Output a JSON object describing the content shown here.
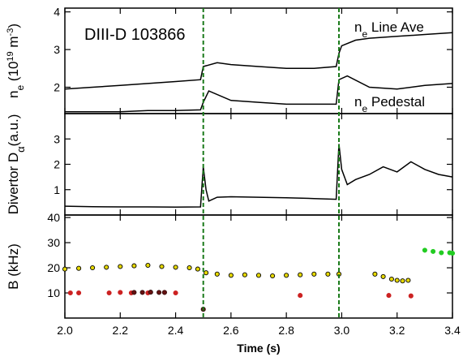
{
  "chart_data": [
    {
      "type": "line",
      "panel": "top",
      "title": "DIII-D 103866",
      "ylabel": "n_e (10^19 m^-3)",
      "ylabel_parts": {
        "base": "n",
        "sub": "e",
        "units_pre": " (10",
        "units_sup": "19",
        "units_mid": " m",
        "units_sup2": "-3",
        "units_post": ")"
      },
      "ylim": [
        1.3,
        4.1
      ],
      "yticks": [
        2,
        3,
        4
      ],
      "xlim": [
        2.0,
        3.4
      ],
      "series": [
        {
          "name": "n_e Line Ave",
          "label_base": "n",
          "label_sub": "e",
          "label_rest": " Line Ave",
          "x": [
            2.0,
            2.1,
            2.2,
            2.3,
            2.4,
            2.49,
            2.5,
            2.55,
            2.6,
            2.7,
            2.8,
            2.9,
            2.98,
            2.99,
            3.0,
            3.05,
            3.1,
            3.2,
            3.3,
            3.4
          ],
          "y": [
            1.95,
            2.0,
            2.05,
            2.1,
            2.15,
            2.2,
            2.55,
            2.65,
            2.6,
            2.55,
            2.5,
            2.5,
            2.55,
            2.9,
            3.1,
            3.25,
            3.3,
            3.35,
            3.4,
            3.45
          ]
        },
        {
          "name": "n_e Pedestal",
          "label_base": "n",
          "label_sub": "e",
          "label_rest": " Pedestal",
          "x": [
            2.0,
            2.1,
            2.2,
            2.3,
            2.4,
            2.49,
            2.5,
            2.52,
            2.6,
            2.7,
            2.8,
            2.9,
            2.98,
            2.99,
            3.02,
            3.1,
            3.2,
            3.3,
            3.4
          ],
          "y": [
            1.35,
            1.35,
            1.35,
            1.38,
            1.38,
            1.4,
            1.6,
            1.9,
            1.65,
            1.6,
            1.55,
            1.55,
            1.55,
            2.2,
            2.3,
            2.0,
            1.95,
            2.05,
            2.1
          ]
        }
      ]
    },
    {
      "type": "line",
      "panel": "middle",
      "ylabel": "Divertor Dα (a.u.)",
      "ylabel_parts": {
        "base": "Divertor D",
        "sub": "α",
        "post": "(a.u.)"
      },
      "ylim": [
        0,
        4
      ],
      "yticks": [
        1,
        2,
        3
      ],
      "xlim": [
        2.0,
        3.4
      ],
      "series": [
        {
          "x": [
            2.0,
            2.1,
            2.2,
            2.3,
            2.4,
            2.49,
            2.5,
            2.51,
            2.52,
            2.55,
            2.6,
            2.7,
            2.8,
            2.9,
            2.98,
            2.99,
            3.0,
            3.02,
            3.05,
            3.1,
            3.15,
            3.2,
            3.25,
            3.3,
            3.35,
            3.4
          ],
          "y": [
            0.35,
            0.33,
            0.32,
            0.32,
            0.31,
            0.32,
            1.9,
            1.0,
            0.55,
            0.7,
            0.72,
            0.7,
            0.68,
            0.65,
            0.62,
            2.8,
            1.8,
            1.2,
            1.4,
            1.6,
            1.9,
            1.7,
            2.1,
            1.8,
            1.6,
            1.5
          ]
        }
      ]
    },
    {
      "type": "scatter",
      "panel": "bottom",
      "ylabel": "B̃ (kHz)",
      "ylabel_parts": {
        "base": "B",
        "accent": "~",
        "post": " (kHz)"
      },
      "ylim": [
        0,
        41
      ],
      "yticks": [
        10,
        20,
        30,
        40
      ],
      "xlim": [
        2.0,
        3.4
      ],
      "xticks": [
        2.0,
        2.2,
        2.4,
        2.6,
        2.8,
        3.0,
        3.2,
        3.4
      ],
      "xtick_labels": [
        "2.0",
        "2.2",
        "2.4",
        "2.6",
        "2.8",
        "3.0",
        "3.2",
        "3.4"
      ],
      "xlabel": "Time (s)",
      "series": [
        {
          "color": "#e6d800",
          "edge": "#000000",
          "x": [
            2.0,
            2.05,
            2.1,
            2.15,
            2.2,
            2.25,
            2.3,
            2.35,
            2.4,
            2.45,
            2.48,
            2.51,
            2.55,
            2.6,
            2.65,
            2.7,
            2.75,
            2.8,
            2.85,
            2.9,
            2.95,
            2.99
          ],
          "y": [
            19.5,
            19.8,
            20.0,
            20.2,
            20.5,
            20.8,
            21.0,
            20.5,
            20.2,
            20.0,
            19.5,
            18.0,
            17.5,
            17.0,
            17.2,
            17.0,
            16.8,
            17.0,
            17.2,
            17.5,
            17.5,
            17.5
          ]
        },
        {
          "color": "#e6d800",
          "edge": "#000000",
          "x": [
            3.12,
            3.15,
            3.18,
            3.2,
            3.22,
            3.24
          ],
          "y": [
            17.5,
            16.5,
            15.5,
            15.0,
            14.8,
            15.0
          ]
        },
        {
          "color": "#22cc22",
          "edge": "#22cc22",
          "x": [
            3.3,
            3.33,
            3.36,
            3.39,
            3.4
          ],
          "y": [
            27.0,
            26.5,
            26.0,
            26.0,
            25.8
          ]
        },
        {
          "color": "#cc2222",
          "edge": "#cc2222",
          "x": [
            2.02,
            2.05,
            2.16,
            2.2,
            2.24,
            2.3,
            2.36,
            2.4,
            2.85,
            3.17,
            3.25
          ],
          "y": [
            10.0,
            10.0,
            10.0,
            10.2,
            10.0,
            10.0,
            10.2,
            10.0,
            9.0,
            9.0,
            8.8
          ]
        },
        {
          "color": "#661111",
          "edge": "#331111",
          "x": [
            2.25,
            2.28,
            2.31,
            2.34,
            2.36,
            2.5
          ],
          "y": [
            10.2,
            10.2,
            10.3,
            10.2,
            10.2,
            3.5
          ]
        }
      ]
    }
  ],
  "markers": {
    "vlines_x": [
      2.5,
      2.99
    ],
    "vline_color": "#1a7a1a"
  }
}
